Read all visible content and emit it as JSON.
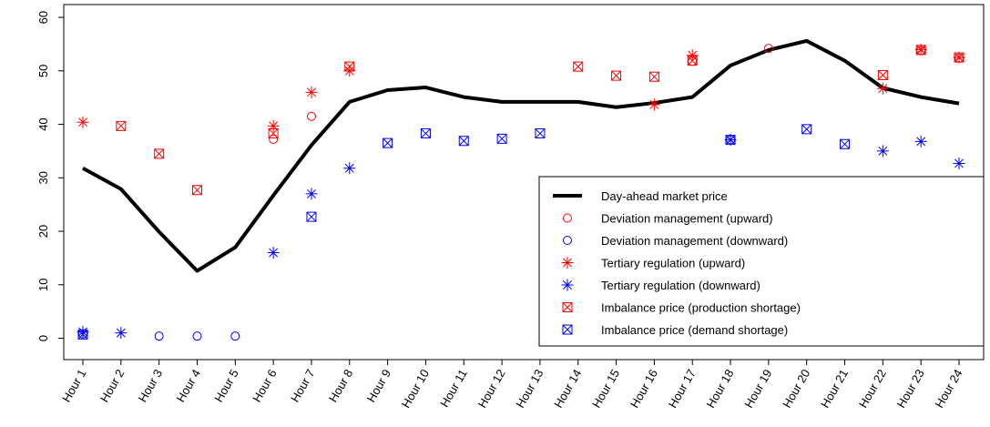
{
  "chart_data": {
    "type": "line",
    "categories": [
      "Hour 1",
      "Hour 2",
      "Hour 3",
      "Hour 4",
      "Hour 5",
      "Hour 6",
      "Hour 7",
      "Hour 8",
      "Hour 9",
      "Hour 10",
      "Hour 11",
      "Hour 12",
      "Hour 13",
      "Hour 14",
      "Hour 15",
      "Hour 16",
      "Hour 17",
      "Hour 18",
      "Hour 19",
      "Hour 20",
      "Hour 21",
      "Hour 22",
      "Hour 23",
      "Hour 24"
    ],
    "ylim": [
      -4,
      62.4
    ],
    "yticks": [
      0,
      10,
      20,
      30,
      40,
      50,
      60
    ],
    "legend": "bottom-right",
    "series": [
      {
        "name": "Day-ahead market price",
        "color": "#000000",
        "marker": "line",
        "values": [
          31.8,
          27.9,
          19.9,
          12.6,
          17.0,
          26.7,
          36.1,
          44.2,
          46.4,
          46.9,
          45.1,
          44.2,
          44.2,
          44.2,
          43.2,
          44.0,
          45.1,
          51.0,
          53.9,
          55.6,
          51.9,
          46.8,
          45.1,
          43.9
        ]
      },
      {
        "name": "Deviation management (upward)",
        "color": "#ff0000",
        "marker": "circle",
        "values": [
          null,
          null,
          null,
          null,
          null,
          37.2,
          41.5,
          null,
          null,
          null,
          null,
          null,
          null,
          null,
          null,
          null,
          51.8,
          null,
          54.2,
          null,
          null,
          null,
          53.8,
          52.4
        ]
      },
      {
        "name": "Deviation management (downward)",
        "color": "#0000ff",
        "marker": "circle",
        "values": [
          0.8,
          null,
          0.4,
          0.4,
          0.4,
          null,
          null,
          null,
          null,
          null,
          null,
          null,
          null,
          null,
          null,
          null,
          null,
          37.1,
          null,
          null,
          null,
          null,
          null,
          null
        ]
      },
      {
        "name": "Tertiary regulation (upward)",
        "color": "#ff0000",
        "marker": "star",
        "values": [
          40.4,
          null,
          null,
          null,
          null,
          39.7,
          46.0,
          50.0,
          null,
          null,
          null,
          null,
          null,
          null,
          null,
          43.7,
          52.9,
          null,
          null,
          null,
          null,
          46.7,
          54.0,
          52.5
        ]
      },
      {
        "name": "Tertiary regulation (downward)",
        "color": "#0000ff",
        "marker": "star",
        "values": [
          1.2,
          1.0,
          null,
          null,
          null,
          16.0,
          27.0,
          31.8,
          null,
          null,
          null,
          null,
          null,
          null,
          null,
          null,
          null,
          37.1,
          null,
          null,
          null,
          35.0,
          36.8,
          32.7
        ]
      },
      {
        "name": "Imbalance price (production shortage)",
        "color": "#ff0000",
        "marker": "boxx",
        "values": [
          null,
          39.7,
          34.5,
          27.7,
          null,
          38.3,
          null,
          50.8,
          null,
          null,
          null,
          null,
          null,
          50.8,
          49.1,
          48.9,
          51.9,
          null,
          null,
          null,
          null,
          49.2,
          53.9,
          52.5
        ]
      },
      {
        "name": "Imbalance price (demand shortage)",
        "color": "#0000ff",
        "marker": "boxx",
        "values": [
          0.7,
          null,
          null,
          null,
          null,
          null,
          22.7,
          null,
          36.5,
          38.3,
          36.9,
          37.3,
          38.3,
          null,
          null,
          null,
          null,
          37.1,
          null,
          39.1,
          36.3,
          null,
          null,
          null
        ]
      }
    ]
  }
}
